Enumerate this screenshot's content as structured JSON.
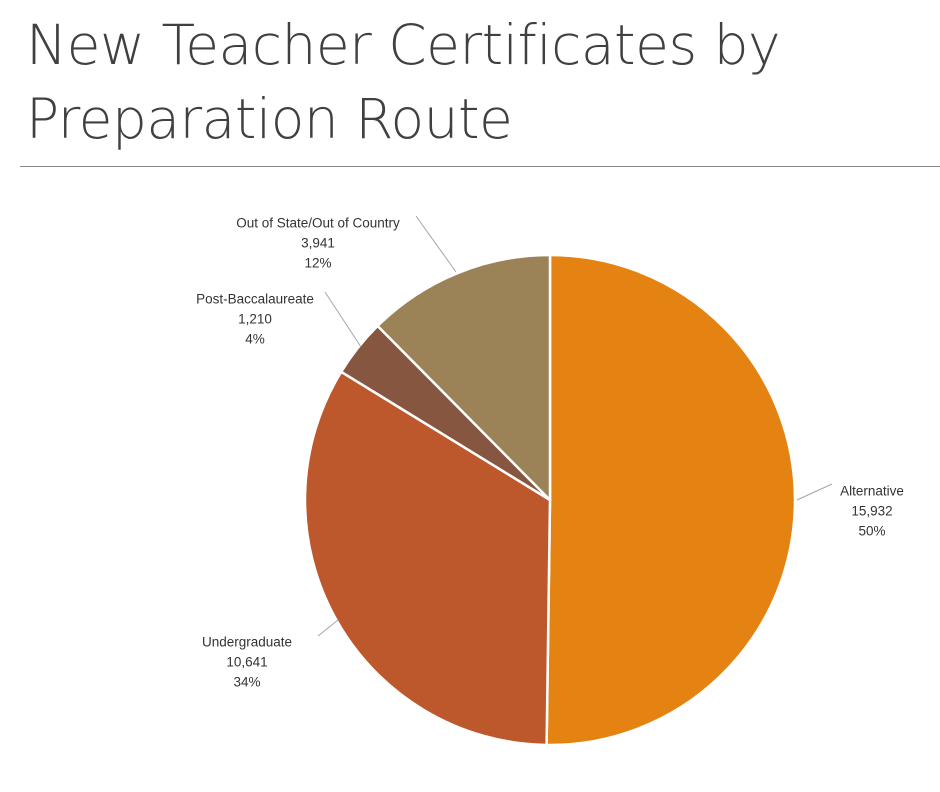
{
  "title": "New Teacher Certificates by Preparation Route",
  "chart_data": {
    "type": "pie",
    "title": "New Teacher Certificates by Preparation Route",
    "start": "12 o'clock, clockwise",
    "slices": [
      {
        "name": "Alternative",
        "value": 15932,
        "value_label": "15,932",
        "percent_label": "50%",
        "color": "#E48312"
      },
      {
        "name": "Undergraduate",
        "value": 10641,
        "value_label": "10,641",
        "percent_label": "34%",
        "color": "#BD582C"
      },
      {
        "name": "Post-Baccalaureate",
        "value": 1210,
        "value_label": "1,210",
        "percent_label": "4%",
        "color": "#865640"
      },
      {
        "name": "Out of State/Out of Country",
        "value": 3941,
        "value_label": "3,941",
        "percent_label": "12%",
        "color": "#9B8357"
      }
    ]
  }
}
